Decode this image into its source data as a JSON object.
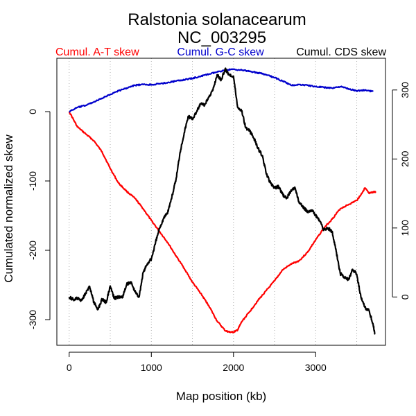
{
  "chart_data": {
    "type": "line",
    "title": "Ralstonia solanacearum",
    "subtitle": "NC_003295",
    "xlabel": "Map position (kb)",
    "ylabel": "Cumulated normalized skew",
    "xlim": [
      -150,
      3850
    ],
    "ylim": [
      -337,
      77
    ],
    "y2lim": [
      -70,
      346
    ],
    "xticks": [
      0,
      1000,
      2000,
      3000
    ],
    "yticks": [
      0,
      -100,
      -200,
      -300
    ],
    "y2ticks": [
      0,
      100,
      200,
      300
    ],
    "gridlines_x": [
      0,
      500,
      1000,
      1500,
      2000,
      2500,
      3000,
      3500
    ],
    "grid": "vertical dotted",
    "legend": [
      {
        "label": "Cumul. A-T skew",
        "color": "#ff0000",
        "position": "top-left"
      },
      {
        "label": "Cumul. G-C skew",
        "color": "#0000cc",
        "position": "top-center"
      },
      {
        "label": "Cumul. CDS skew",
        "color": "#000000",
        "position": "top-right"
      }
    ],
    "series": [
      {
        "name": "Cumul. A-T skew",
        "axis": "left",
        "color": "#ff0000",
        "x": [
          0,
          100,
          200,
          300,
          400,
          500,
          600,
          700,
          800,
          900,
          1000,
          1100,
          1200,
          1300,
          1400,
          1500,
          1600,
          1700,
          1800,
          1900,
          1950,
          2000,
          2050,
          2100,
          2200,
          2300,
          2400,
          2500,
          2600,
          2700,
          2800,
          2900,
          3000,
          3100,
          3200,
          3300,
          3400,
          3500,
          3550,
          3600,
          3650,
          3700,
          3730
        ],
        "y": [
          0,
          -22,
          -32,
          -42,
          -58,
          -82,
          -103,
          -115,
          -125,
          -140,
          -157,
          -173,
          -189,
          -208,
          -226,
          -246,
          -262,
          -280,
          -302,
          -316,
          -318,
          -318,
          -315,
          -303,
          -288,
          -272,
          -258,
          -244,
          -228,
          -220,
          -215,
          -203,
          -185,
          -168,
          -155,
          -140,
          -134,
          -128,
          -120,
          -110,
          -118,
          -116,
          -116
        ]
      },
      {
        "name": "Cumul. G-C skew",
        "axis": "left",
        "color": "#0000cc",
        "x": [
          0,
          100,
          200,
          300,
          400,
          500,
          600,
          700,
          800,
          900,
          1000,
          1100,
          1200,
          1300,
          1400,
          1500,
          1600,
          1700,
          1800,
          1900,
          2000,
          2100,
          2200,
          2300,
          2400,
          2500,
          2600,
          2700,
          2800,
          2900,
          3000,
          3100,
          3200,
          3300,
          3400,
          3500,
          3600,
          3700
        ],
        "y": [
          0,
          6,
          9,
          14,
          19,
          25,
          30,
          34,
          38,
          39,
          39,
          40,
          42,
          44,
          46,
          48,
          51,
          54,
          57,
          60,
          61,
          60,
          58,
          56,
          53,
          49,
          44,
          38,
          39,
          38,
          36,
          35,
          34,
          36,
          33,
          30,
          31,
          29
        ]
      },
      {
        "name": "Cumul. CDS skew",
        "axis": "right",
        "color": "#000000",
        "x": [
          0,
          50,
          100,
          150,
          200,
          250,
          300,
          350,
          400,
          450,
          500,
          550,
          600,
          650,
          700,
          750,
          800,
          850,
          900,
          950,
          1000,
          1050,
          1100,
          1150,
          1200,
          1250,
          1300,
          1350,
          1400,
          1450,
          1500,
          1550,
          1600,
          1650,
          1700,
          1750,
          1800,
          1850,
          1900,
          1950,
          2000,
          2050,
          2100,
          2150,
          2200,
          2250,
          2300,
          2350,
          2400,
          2450,
          2500,
          2550,
          2600,
          2650,
          2700,
          2750,
          2800,
          2850,
          2900,
          2950,
          3000,
          3050,
          3100,
          3150,
          3200,
          3250,
          3300,
          3350,
          3400,
          3450,
          3500,
          3550,
          3600,
          3650,
          3700,
          3720
        ],
        "y": [
          0,
          -4,
          -2,
          -5,
          6,
          15,
          -8,
          -18,
          -3,
          -8,
          16,
          -2,
          0,
          0,
          18,
          22,
          8,
          0,
          35,
          48,
          55,
          78,
          100,
          114,
          123,
          145,
          170,
          210,
          238,
          262,
          258,
          268,
          280,
          278,
          290,
          300,
          322,
          315,
          330,
          322,
          320,
          275,
          270,
          245,
          240,
          230,
          215,
          205,
          178,
          165,
          158,
          160,
          148,
          143,
          155,
          158,
          136,
          130,
          124,
          126,
          118,
          110,
          97,
          100,
          95,
          66,
          34,
          28,
          25,
          40,
          33,
          0,
          -15,
          -20,
          -40,
          -53
        ]
      }
    ]
  }
}
